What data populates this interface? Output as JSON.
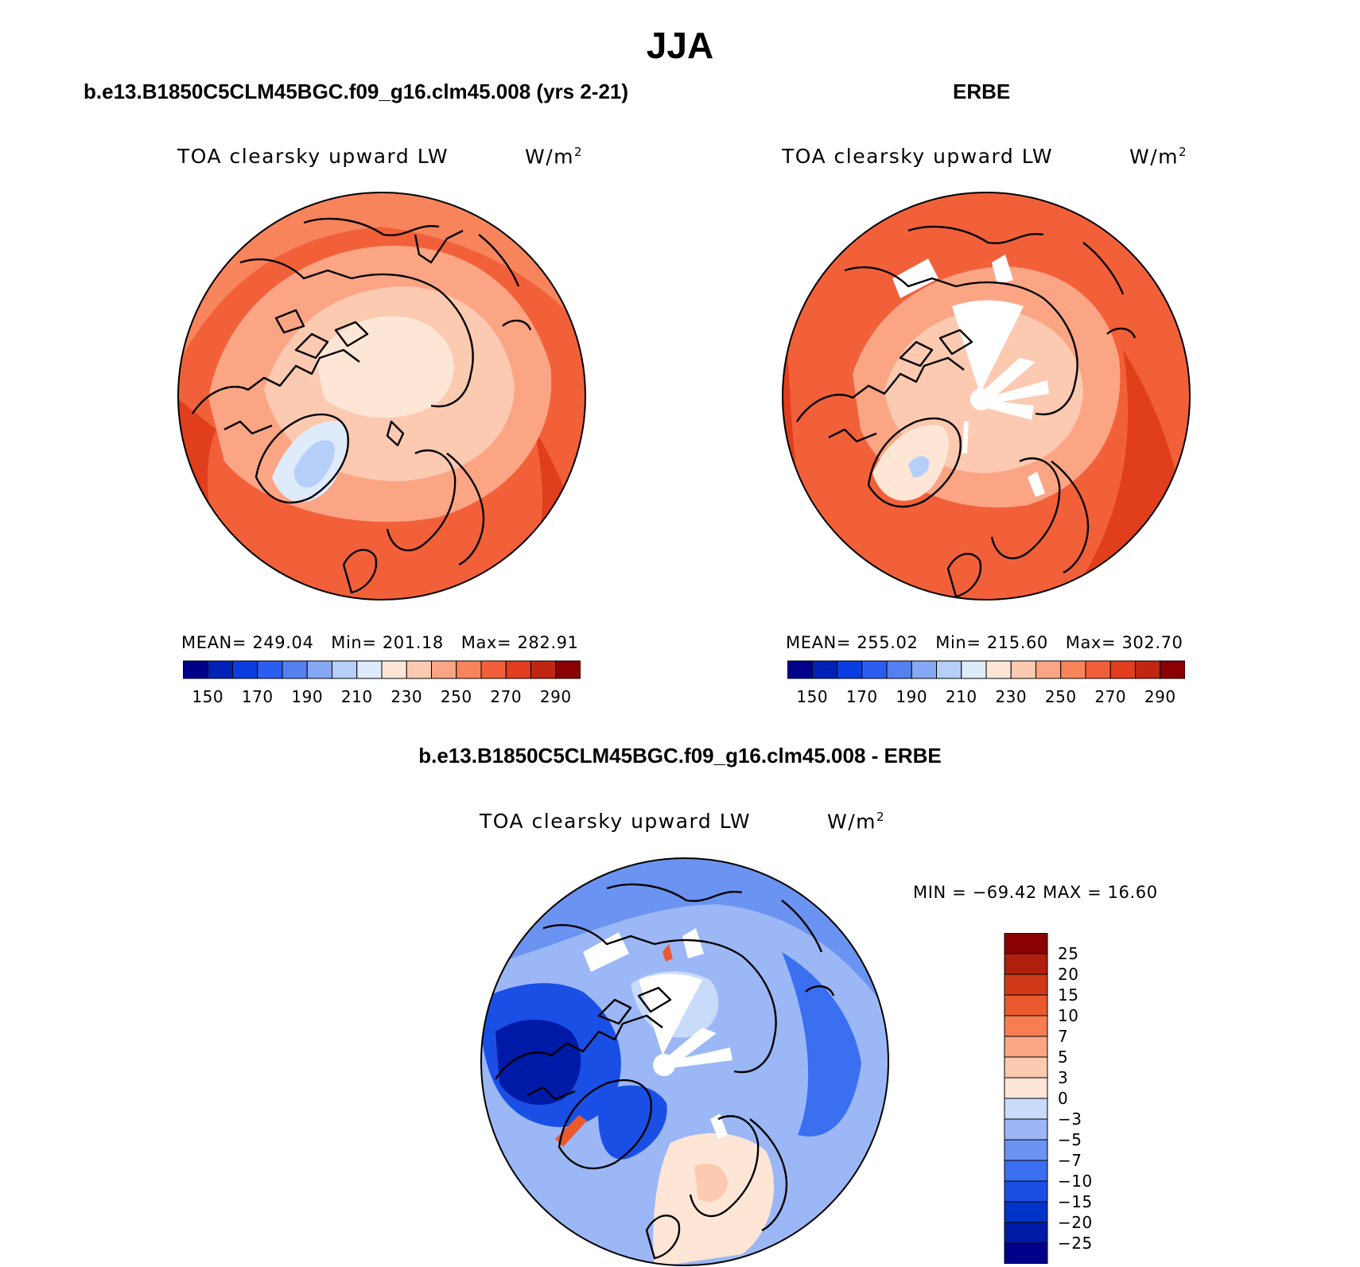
{
  "main_title": "JJA",
  "panels": [
    {
      "title": "b.e13.B1850C5CLM45BGC.f09_g16.clm45.008 (yrs 2-21)",
      "variable": "TOA clearsky upward LW",
      "units": "W/m",
      "units_sup": "2",
      "stats": {
        "mean_label": "MEAN=",
        "mean": "249.04",
        "min_label": "Min=",
        "min": "201.18",
        "max_label": "Max=",
        "max": "282.91"
      }
    },
    {
      "title": "ERBE",
      "variable": "TOA clearsky upward LW",
      "units": "W/m",
      "units_sup": "2",
      "stats": {
        "mean_label": "MEAN=",
        "mean": "255.02",
        "min_label": "Min=",
        "min": "215.60",
        "max_label": "Max=",
        "max": "302.70"
      }
    },
    {
      "title": "b.e13.B1850C5CLM45BGC.f09_g16.clm45.008 - ERBE",
      "variable": "TOA clearsky upward LW",
      "units": "W/m",
      "units_sup": "2",
      "minmax": "MIN = −69.42 MAX =   16.60"
    }
  ],
  "colorbar_abs": {
    "colors": [
      "#00008b",
      "#0022b8",
      "#0a3ee0",
      "#2a5df0",
      "#5580f0",
      "#86a8f5",
      "#b5cff8",
      "#deebfb",
      "#fde6d6",
      "#fcc9b1",
      "#fba585",
      "#f8845c",
      "#f2603a",
      "#e03e1c",
      "#c12612",
      "#8b0000"
    ],
    "labels": [
      "150",
      "170",
      "190",
      "210",
      "230",
      "250",
      "270",
      "290"
    ]
  },
  "colorbar_diff": {
    "colors": [
      "#00008b",
      "#001aa8",
      "#0033c8",
      "#1a4fe6",
      "#3a6ff0",
      "#6a93f2",
      "#9bb7f6",
      "#c9dbfa",
      "#fde6d6",
      "#fcc9b1",
      "#fba585",
      "#f67e52",
      "#ea5a2e",
      "#d03a18",
      "#b01e0c",
      "#8b0000"
    ],
    "labels": [
      "25",
      "20",
      "15",
      "10",
      "7",
      "5",
      "3",
      "0",
      "−3",
      "−5",
      "−7",
      "−10",
      "−15",
      "−20",
      "−25"
    ]
  }
}
